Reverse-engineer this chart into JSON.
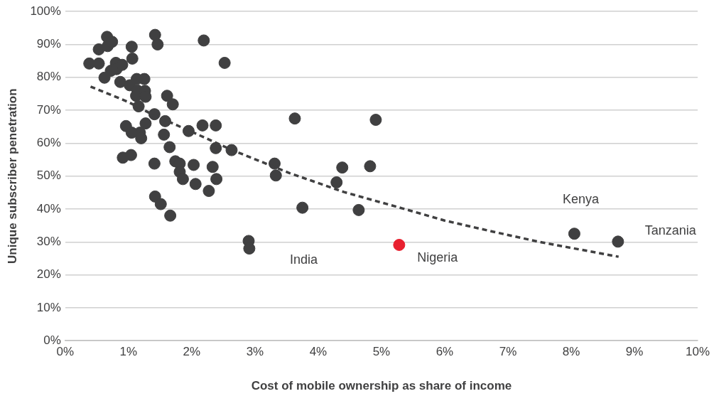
{
  "chart_data": {
    "type": "scatter",
    "xlabel": "Cost of mobile ownership as share of income",
    "ylabel": "Unique subscriber penetration",
    "xlim": [
      0,
      10
    ],
    "xticks": [
      {
        "value": 0,
        "label": "0%"
      },
      {
        "value": 1,
        "label": "1%"
      },
      {
        "value": 2,
        "label": "2%"
      },
      {
        "value": 3,
        "label": "3%"
      },
      {
        "value": 4,
        "label": "4%"
      },
      {
        "value": 5,
        "label": "5%"
      },
      {
        "value": 6,
        "label": "6%"
      },
      {
        "value": 7,
        "label": "7%"
      },
      {
        "value": 8,
        "label": "8%"
      },
      {
        "value": 9,
        "label": "9%"
      },
      {
        "value": 10,
        "label": "10%"
      }
    ],
    "ylim": [
      0,
      100
    ],
    "yticks": [
      {
        "value": 0,
        "label": "0%"
      },
      {
        "value": 10,
        "label": "10%"
      },
      {
        "value": 20,
        "label": "20%"
      },
      {
        "value": 30,
        "label": "30%"
      },
      {
        "value": 40,
        "label": "40%"
      },
      {
        "value": 50,
        "label": "50%"
      },
      {
        "value": 60,
        "label": "60%"
      },
      {
        "value": 70,
        "label": "70%"
      },
      {
        "value": 80,
        "label": "80%"
      },
      {
        "value": 90,
        "label": "90%"
      },
      {
        "value": 100,
        "label": "100%"
      }
    ],
    "grid": "y",
    "legend": false,
    "marker": "circle",
    "series": [
      {
        "type": "scatter",
        "color": "#404041",
        "x": [
          0.38,
          0.53,
          0.53,
          0.66,
          0.67,
          0.74,
          0.72,
          0.62,
          0.8,
          0.81,
          0.9,
          0.87,
          1.05,
          1.06,
          1.02,
          1.13,
          1.25,
          1.14,
          1.12,
          1.26,
          1.27,
          1.16,
          1.42,
          1.46,
          1.61,
          1.7,
          2.19,
          2.52,
          0.96,
          1.27,
          1.18,
          1.05,
          1.2,
          1.41,
          1.58,
          1.56,
          1.65,
          1.95,
          2.17,
          2.38,
          2.38,
          2.63,
          0.91,
          1.04,
          1.41,
          1.74,
          1.81,
          1.81,
          1.86,
          2.03,
          2.06,
          2.33,
          2.39,
          2.27,
          1.42,
          1.51,
          1.66,
          2.9,
          2.91,
          3.63,
          4.91,
          3.31,
          3.33,
          4.38,
          4.29,
          4.82,
          3.75,
          4.64,
          8.05,
          8.74
        ],
        "values": [
          84.2,
          88.5,
          84.2,
          92.3,
          89.5,
          90.8,
          82,
          79.9,
          84.4,
          82.5,
          83.8,
          78.6,
          89.3,
          85.7,
          77.6,
          79.5,
          79.5,
          76,
          74.4,
          75.9,
          74.1,
          71.2,
          92.9,
          90,
          74.4,
          71.8,
          91.2,
          84.4,
          65.2,
          66,
          63.2,
          63.2,
          61.5,
          68.8,
          66.7,
          62.6,
          58.8,
          63.7,
          65.4,
          65.4,
          58.5,
          57.9,
          55.6,
          56.4,
          53.8,
          54.5,
          53.8,
          51.3,
          49.1,
          53.4,
          47.6,
          52.8,
          49.1,
          45.5,
          43.8,
          41.5,
          38,
          30.3,
          28,
          67.5,
          67.1,
          53.8,
          50.2,
          52.6,
          48.1,
          53,
          40.4,
          39.7,
          32.5,
          30.1
        ]
      },
      {
        "type": "scatter",
        "color": "#e8202f",
        "x": [
          5.28
        ],
        "values": [
          29.1
        ]
      },
      {
        "type": "line",
        "color": "#404041",
        "line_style": "dashed",
        "marker": "none",
        "x": [
          0.4,
          1,
          1.41,
          1.95,
          2.64,
          3.55,
          4.4,
          5.33,
          6,
          6.77,
          7.5,
          8.75
        ],
        "values": [
          77.2,
          72.5,
          68.4,
          63.9,
          57.9,
          50.9,
          45.2,
          40.2,
          36.5,
          33.1,
          30,
          25.5
        ]
      }
    ],
    "annotations": [
      "India",
      {
        "text": "Nigeria",
        "x": 5.28,
        "y": 29.1
      },
      {
        "text": "Kenya",
        "x": 8.05,
        "y": 32.5
      },
      {
        "text": "Tanzania",
        "x": 8.74,
        "y": 30.1
      }
    ]
  }
}
